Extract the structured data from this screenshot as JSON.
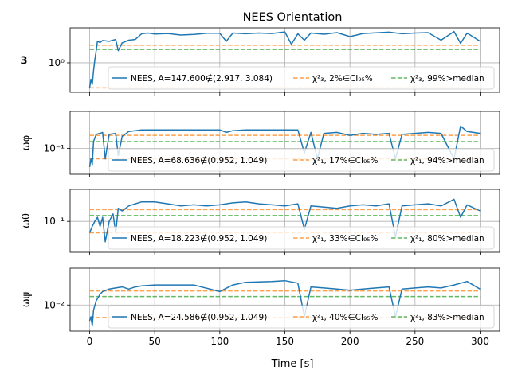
{
  "chart_data": {
    "type": "line",
    "title": "NEES Orientation",
    "xlabel": "Time [s]",
    "xlim": [
      -15,
      315
    ],
    "x_ticks": [
      0,
      50,
      100,
      150,
      200,
      250,
      300
    ],
    "grid": true,
    "legend_position": "lower-right",
    "colors": {
      "nees": "#1f77b4",
      "ci": "#ff7f0e",
      "median": "#2ca02c"
    },
    "panels": [
      {
        "ylabel": "3",
        "ylim": [
          0.15,
          9.5
        ],
        "yscale": "log",
        "y_tick_values": [
          1
        ],
        "y_tick_labels": [
          "10⁰"
        ],
        "ci_lower": 0.2,
        "ci_upper": 3.1,
        "median": 2.37,
        "legend": {
          "nees": "NEES, A=147.600∉(2.917, 3.084)",
          "ci": "χ²₃, 2%∈CI₉₅%",
          "median": "χ²₃, 99%>median"
        },
        "series": {
          "name": "NEES",
          "x": [
            0,
            1,
            2,
            3,
            4,
            5,
            6,
            8,
            10,
            15,
            20,
            22,
            25,
            30,
            35,
            40,
            45,
            50,
            60,
            70,
            80,
            90,
            100,
            105,
            110,
            120,
            130,
            140,
            150,
            155,
            160,
            165,
            170,
            180,
            190,
            200,
            210,
            220,
            230,
            240,
            250,
            260,
            270,
            280,
            285,
            290,
            300
          ],
          "y": [
            0.2,
            0.35,
            0.25,
            0.6,
            1.2,
            2.2,
            4.0,
            3.7,
            4.2,
            4.0,
            4.5,
            2.2,
            3.6,
            4.3,
            4.5,
            6.5,
            6.8,
            6.4,
            6.6,
            6.0,
            6.2,
            6.7,
            6.7,
            4.0,
            6.8,
            6.5,
            6.8,
            6.6,
            7.3,
            3.3,
            6.5,
            4.3,
            6.8,
            6.3,
            7.0,
            5.4,
            6.6,
            6.9,
            7.2,
            6.5,
            6.8,
            7.0,
            4.3,
            7.5,
            3.5,
            6.8,
            4.0
          ]
        }
      },
      {
        "ylabel": "ωφ",
        "ylim": [
          0.028,
          0.62
        ],
        "yscale": "log",
        "y_tick_values": [
          0.1
        ],
        "y_tick_labels": [
          "10⁻¹"
        ],
        "ci_lower": 0.06,
        "ci_upper": 0.19,
        "median": 0.14,
        "legend": {
          "nees": "NEES, A=68.636∉(0.952, 1.049)",
          "ci": "χ²₁, 17%∈CI₉₅%",
          "median": "χ²₁, 94%>median"
        },
        "series": {
          "name": "NEES",
          "x": [
            0,
            1,
            2,
            3,
            5,
            8,
            10,
            12,
            15,
            20,
            22,
            25,
            30,
            35,
            40,
            50,
            60,
            80,
            100,
            105,
            110,
            120,
            140,
            160,
            165,
            170,
            175,
            180,
            190,
            200,
            205,
            210,
            220,
            230,
            235,
            240,
            250,
            260,
            270,
            280,
            285,
            290,
            300
          ],
          "y": [
            0.04,
            0.06,
            0.045,
            0.14,
            0.2,
            0.21,
            0.22,
            0.06,
            0.2,
            0.21,
            0.07,
            0.18,
            0.23,
            0.24,
            0.25,
            0.25,
            0.25,
            0.25,
            0.25,
            0.22,
            0.24,
            0.25,
            0.25,
            0.25,
            0.08,
            0.22,
            0.06,
            0.21,
            0.22,
            0.19,
            0.2,
            0.21,
            0.2,
            0.21,
            0.06,
            0.2,
            0.21,
            0.22,
            0.21,
            0.06,
            0.3,
            0.23,
            0.21
          ]
        }
      },
      {
        "ylabel": "ωθ",
        "ylim": [
          0.025,
          0.42
        ],
        "yscale": "log",
        "y_tick_values": [
          0.1
        ],
        "y_tick_labels": [
          "10⁻¹"
        ],
        "ci_lower": 0.06,
        "ci_upper": 0.17,
        "median": 0.13,
        "legend": {
          "nees": "NEES, A=18.223∉(0.952, 1.049)",
          "ci": "χ²₁, 33%∈CI₉₅%",
          "median": "χ²₁, 80%>median"
        },
        "series": {
          "name": "NEES",
          "x": [
            0,
            2,
            4,
            6,
            8,
            10,
            12,
            15,
            18,
            20,
            22,
            25,
            30,
            35,
            40,
            50,
            60,
            70,
            80,
            90,
            100,
            110,
            120,
            130,
            140,
            150,
            160,
            165,
            170,
            180,
            190,
            200,
            210,
            220,
            230,
            235,
            240,
            250,
            260,
            270,
            280,
            285,
            290,
            300
          ],
          "y": [
            0.06,
            0.08,
            0.1,
            0.12,
            0.08,
            0.12,
            0.04,
            0.1,
            0.14,
            0.06,
            0.18,
            0.16,
            0.2,
            0.22,
            0.24,
            0.24,
            0.22,
            0.2,
            0.21,
            0.2,
            0.21,
            0.23,
            0.24,
            0.22,
            0.21,
            0.2,
            0.22,
            0.07,
            0.2,
            0.19,
            0.18,
            0.2,
            0.21,
            0.2,
            0.22,
            0.05,
            0.2,
            0.21,
            0.22,
            0.2,
            0.27,
            0.12,
            0.21,
            0.16
          ]
        }
      },
      {
        "ylabel": "ωψ",
        "ylim": [
          0.0032,
          0.05
        ],
        "yscale": "log",
        "y_tick_values": [
          0.01
        ],
        "y_tick_labels": [
          "10⁻²"
        ],
        "ci_lower": 0.0058,
        "ci_upper": 0.0185,
        "median": 0.0145,
        "legend": {
          "nees": "NEES, A=24.586∉(0.952, 1.049)",
          "ci": "χ²₁, 40%∈CI₉₅%",
          "median": "χ²₁, 83%>median"
        },
        "series": {
          "name": "NEES",
          "x": [
            0,
            1,
            2,
            3,
            5,
            8,
            10,
            15,
            20,
            25,
            30,
            35,
            40,
            50,
            60,
            80,
            100,
            110,
            120,
            140,
            150,
            160,
            165,
            170,
            180,
            190,
            200,
            210,
            220,
            230,
            235,
            240,
            250,
            260,
            270,
            280,
            290,
            300
          ],
          "y": [
            0.005,
            0.006,
            0.004,
            0.008,
            0.012,
            0.016,
            0.018,
            0.02,
            0.021,
            0.022,
            0.02,
            0.022,
            0.023,
            0.024,
            0.024,
            0.024,
            0.018,
            0.024,
            0.027,
            0.028,
            0.029,
            0.026,
            0.006,
            0.022,
            0.021,
            0.02,
            0.019,
            0.02,
            0.021,
            0.022,
            0.006,
            0.02,
            0.021,
            0.022,
            0.021,
            0.024,
            0.028,
            0.02
          ]
        }
      }
    ]
  }
}
